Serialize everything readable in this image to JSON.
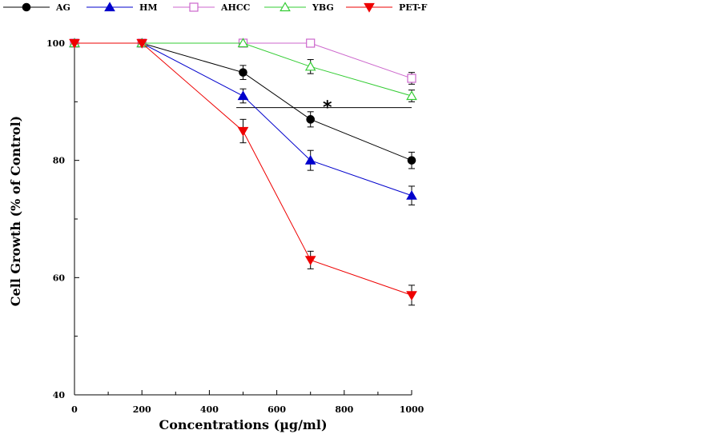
{
  "chart_data": {
    "type": "line",
    "title": "",
    "xlabel": "Concentrations (µg/ml)",
    "ylabel": "Cell Growth (% of Control)",
    "xlim": [
      0,
      1000
    ],
    "ylim": [
      40,
      100
    ],
    "x_ticks": [
      0,
      200,
      400,
      600,
      800,
      1000
    ],
    "x_minor_step": 100,
    "y_ticks": [
      40,
      60,
      80,
      100
    ],
    "y_minor_step": 10,
    "grid": false,
    "legend_position": "top",
    "x": [
      0,
      200,
      500,
      700,
      1000
    ],
    "series": [
      {
        "name": "AG",
        "color": "#000000",
        "marker": "circle-filled",
        "values": [
          100,
          100,
          95,
          87,
          80
        ],
        "errors": [
          0,
          0,
          1.2,
          1.3,
          1.4
        ]
      },
      {
        "name": "HM",
        "color": "#0000cc",
        "marker": "triangle-up-filled",
        "values": [
          100,
          100,
          91,
          80,
          74
        ],
        "errors": [
          0,
          0,
          1.2,
          1.7,
          1.6
        ]
      },
      {
        "name": "AHCC",
        "color": "#cc66cc",
        "marker": "square-open",
        "values": [
          100,
          100,
          100,
          100,
          94
        ],
        "errors": [
          0,
          0,
          0,
          0,
          1.0
        ]
      },
      {
        "name": "YBG",
        "color": "#33cc33",
        "marker": "triangle-up-open",
        "values": [
          100,
          100,
          100,
          96,
          91
        ],
        "errors": [
          0,
          0,
          0,
          1.2,
          1.0
        ]
      },
      {
        "name": "PET-F",
        "color": "#ee0000",
        "marker": "triangle-down-filled",
        "values": [
          100,
          100,
          85,
          63,
          57
        ],
        "errors": [
          0,
          0,
          2.0,
          1.5,
          1.7
        ]
      }
    ],
    "annotations": [
      {
        "text": "*",
        "type": "significance-bracket",
        "x_from": 480,
        "x_to": 1000,
        "y": 89,
        "label_x": 750
      }
    ]
  }
}
